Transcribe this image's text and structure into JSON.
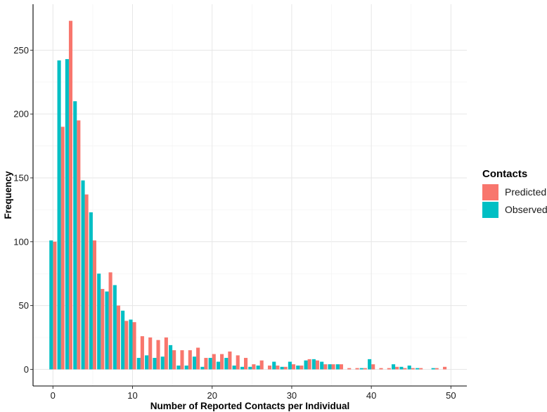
{
  "chart_data": {
    "type": "bar",
    "xlabel": "Number of Reported Contacts per Individual",
    "ylabel": "Frequency",
    "xlim": [
      -2.5,
      52
    ],
    "ylim": [
      -13,
      286
    ],
    "x_ticks": [
      0,
      10,
      20,
      30,
      40,
      50
    ],
    "y_ticks": [
      0,
      50,
      100,
      150,
      200,
      250
    ],
    "grid": true,
    "legend": {
      "title": "Contacts",
      "position": "right"
    },
    "x": [
      0,
      1,
      2,
      3,
      4,
      5,
      6,
      7,
      8,
      9,
      10,
      11,
      12,
      13,
      14,
      15,
      16,
      17,
      18,
      19,
      20,
      21,
      22,
      23,
      24,
      25,
      26,
      27,
      28,
      29,
      30,
      31,
      32,
      33,
      34,
      35,
      36,
      37,
      38,
      39,
      40,
      41,
      42,
      43,
      44,
      45,
      46,
      47,
      48,
      49
    ],
    "series": [
      {
        "name": "Predicted",
        "color": "#F8766D",
        "values": [
          100,
          190,
          273,
          195,
          137,
          101,
          63,
          76,
          50,
          38,
          37,
          26,
          25,
          23,
          25,
          15,
          15,
          15,
          17,
          9,
          12,
          12,
          14,
          11,
          9,
          4,
          7,
          3,
          3,
          2,
          4,
          3,
          8,
          7,
          4,
          4,
          4,
          1,
          1,
          1,
          4,
          1,
          1,
          2,
          1,
          1,
          1,
          0,
          1,
          2
        ]
      },
      {
        "name": "Observed",
        "color": "#00BFC4",
        "values": [
          101,
          242,
          243,
          210,
          148,
          123,
          75,
          61,
          66,
          46,
          39,
          9,
          11,
          9,
          10,
          19,
          3,
          3,
          10,
          2,
          9,
          6,
          9,
          3,
          2,
          2,
          3,
          0,
          6,
          2,
          6,
          3,
          7,
          8,
          6,
          4,
          4,
          0,
          0,
          1,
          8,
          0,
          0,
          4,
          2,
          3,
          1,
          0,
          1,
          0
        ]
      }
    ]
  }
}
